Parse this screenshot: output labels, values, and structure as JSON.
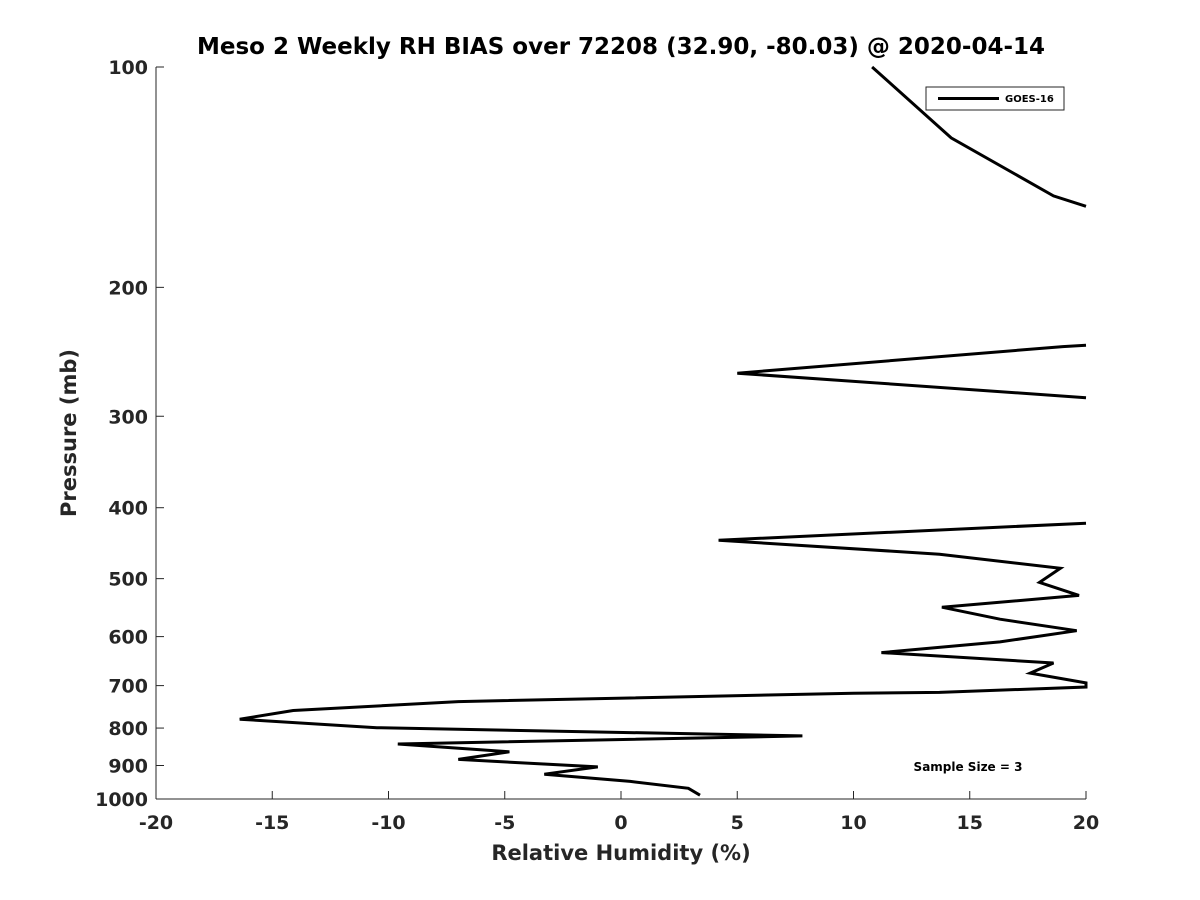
{
  "chart_data": {
    "type": "line",
    "title": "Meso 2 Weekly RH BIAS over 72208 (32.90, -80.03) @ 2020-04-14",
    "xlabel": "Relative Humidity (%)",
    "ylabel": "Pressure (mb)",
    "xlim": [
      -20,
      20
    ],
    "ylim": [
      100,
      1000
    ],
    "y_scale": "log",
    "y_reversed": true,
    "grid": false,
    "x_ticks": [
      -20,
      -15,
      -10,
      -5,
      0,
      5,
      10,
      15,
      20
    ],
    "x_tick_labels": [
      "-20",
      "-15",
      "-10",
      "-5",
      "0",
      "5",
      "10",
      "15",
      "20"
    ],
    "y_ticks": [
      100,
      200,
      300,
      400,
      500,
      600,
      700,
      800,
      900,
      1000
    ],
    "y_tick_labels": [
      "100",
      "200",
      "300",
      "400",
      "500",
      "600",
      "700",
      "800",
      "900",
      "1000"
    ],
    "legend_position": "top-right",
    "annotation": "Sample Size = 3",
    "series": [
      {
        "name": "GOES-16",
        "color": "#000000",
        "segments": [
          [
            {
              "x": 10.8,
              "y": 100
            },
            {
              "x": 14.2,
              "y": 125
            },
            {
              "x": 18.6,
              "y": 150
            },
            {
              "x": 20,
              "y": 155
            }
          ],
          [
            {
              "x": 20,
              "y": 240
            },
            {
              "x": 19,
              "y": 241
            },
            {
              "x": 5,
              "y": 262
            },
            {
              "x": 20,
              "y": 283
            }
          ],
          [
            {
              "x": 20,
              "y": 420
            },
            {
              "x": 4.2,
              "y": 443
            },
            {
              "x": 13.7,
              "y": 463
            },
            {
              "x": 18.9,
              "y": 484
            },
            {
              "x": 18.0,
              "y": 506
            },
            {
              "x": 19.7,
              "y": 527
            },
            {
              "x": 13.8,
              "y": 547
            },
            {
              "x": 16.3,
              "y": 568
            },
            {
              "x": 19.6,
              "y": 589
            },
            {
              "x": 16.3,
              "y": 610
            },
            {
              "x": 11.2,
              "y": 631
            },
            {
              "x": 18.6,
              "y": 652
            },
            {
              "x": 17.6,
              "y": 673
            },
            {
              "x": 20,
              "y": 694
            },
            {
              "x": 20,
              "y": 703
            },
            {
              "x": 13.7,
              "y": 715
            },
            {
              "x": 10.0,
              "y": 717
            },
            {
              "x": -7.0,
              "y": 736
            },
            {
              "x": -14.1,
              "y": 757
            },
            {
              "x": -16.4,
              "y": 778
            },
            {
              "x": -10.5,
              "y": 799
            },
            {
              "x": 7.8,
              "y": 820
            },
            {
              "x": -9.6,
              "y": 841
            },
            {
              "x": -4.8,
              "y": 862
            },
            {
              "x": -7.0,
              "y": 883
            },
            {
              "x": -1.0,
              "y": 904
            },
            {
              "x": -3.3,
              "y": 925
            },
            {
              "x": 0.4,
              "y": 946
            },
            {
              "x": 2.9,
              "y": 967
            },
            {
              "x": 3.4,
              "y": 988
            }
          ]
        ]
      }
    ]
  }
}
